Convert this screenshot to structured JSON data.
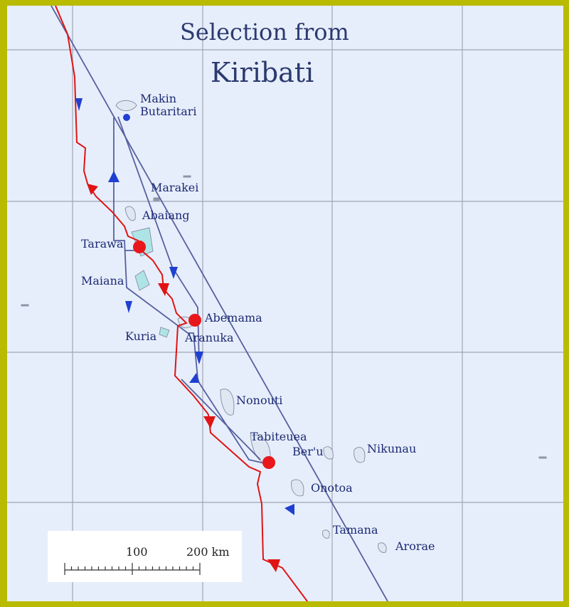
{
  "title": {
    "line1": "Selection from",
    "line2": "Kiribati"
  },
  "islands": {
    "makin": "Makin",
    "butaritari": "Butaritari",
    "marakei": "Marakei",
    "abaiang": "Abaiang",
    "tarawa": "Tarawa",
    "maiana": "Maiana",
    "abemama": "Abemama",
    "kuria": "Kuria",
    "aranuka": "Aranuka",
    "nonouti": "Nonouti",
    "tabiteuea": "Tabiteuea",
    "beru": "Ber'u",
    "nikunau": "Nikunau",
    "onotoa": "Onotoa",
    "tamana": "Tamana",
    "arorae": "Arorae"
  },
  "scale": {
    "mid_label": "100",
    "end_label": "200 km"
  },
  "colors": {
    "frame": "#b9bb00",
    "sea": "#e7eefb",
    "grid": "#9fa6b3",
    "route_red": "#e01414",
    "route_blue": "#5560a0",
    "arrow_blue": "#1f3fd1",
    "label": "#1b2a73"
  }
}
